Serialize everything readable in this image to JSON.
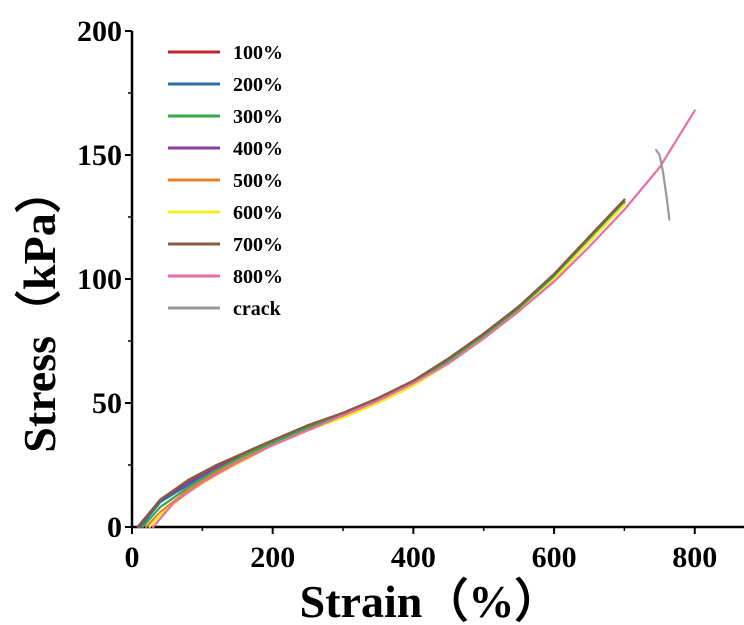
{
  "chart_data": {
    "type": "line",
    "xlabel": "Strain（%）",
    "ylabel": "Stress（kPa）",
    "xlim": [
      0,
      870
    ],
    "ylim": [
      0,
      200
    ],
    "xticks": [
      0,
      200,
      400,
      600,
      800
    ],
    "yticks": [
      0,
      50,
      100,
      150,
      200
    ],
    "grid": false,
    "legend_position": "top-left",
    "series": [
      {
        "name": "100%",
        "color": "#c0272d",
        "x": [
          10,
          40,
          80,
          120,
          160,
          200,
          250,
          300,
          350,
          400,
          450,
          500,
          550,
          600,
          650,
          700
        ],
        "y": [
          0,
          10,
          18,
          24,
          29,
          34,
          40,
          45,
          51,
          58,
          67,
          77,
          88,
          101,
          116,
          131
        ]
      },
      {
        "name": "200%",
        "color": "#2e6fa8",
        "x": [
          12,
          40,
          80,
          120,
          160,
          200,
          250,
          300,
          350,
          400,
          450,
          500,
          550,
          600,
          650,
          700
        ],
        "y": [
          0,
          10,
          17,
          24,
          29,
          34,
          40,
          45,
          51,
          58,
          67,
          77,
          88,
          101,
          116,
          131
        ]
      },
      {
        "name": "300%",
        "color": "#3aa84a",
        "x": [
          15,
          40,
          80,
          120,
          160,
          200,
          250,
          300,
          350,
          400,
          450,
          500,
          550,
          600,
          650,
          700
        ],
        "y": [
          0,
          8,
          16,
          23,
          29,
          34,
          40,
          45,
          51,
          58,
          67,
          77,
          88,
          101,
          116,
          131
        ]
      },
      {
        "name": "400%",
        "color": "#8b3d9c",
        "x": [
          8,
          40,
          80,
          120,
          160,
          200,
          250,
          300,
          350,
          400,
          450,
          500,
          550,
          600,
          650,
          700
        ],
        "y": [
          0,
          11,
          18,
          24,
          30,
          35,
          41,
          46,
          52,
          59,
          68,
          78,
          89,
          102,
          117,
          132
        ]
      },
      {
        "name": "500%",
        "color": "#e8802a",
        "x": [
          20,
          40,
          80,
          120,
          160,
          200,
          250,
          300,
          350,
          400,
          450,
          500,
          550,
          600,
          650,
          700
        ],
        "y": [
          0,
          6,
          15,
          22,
          28,
          33,
          39,
          45,
          50,
          57,
          66,
          76,
          87,
          100,
          115,
          130
        ]
      },
      {
        "name": "600%",
        "color": "#f2ee2a",
        "x": [
          25,
          40,
          80,
          120,
          160,
          200,
          250,
          300,
          350,
          400,
          450,
          500,
          550,
          600,
          650,
          700
        ],
        "y": [
          0,
          5,
          14,
          21,
          27,
          33,
          39,
          44,
          50,
          57,
          66,
          76,
          87,
          100,
          115,
          130
        ]
      },
      {
        "name": "700%",
        "color": "#8a5a3c",
        "x": [
          10,
          40,
          80,
          120,
          160,
          200,
          250,
          300,
          350,
          400,
          450,
          500,
          550,
          600,
          650,
          700
        ],
        "y": [
          0,
          11,
          19,
          25,
          30,
          35,
          41,
          46,
          52,
          59,
          68,
          78,
          89,
          102,
          117,
          132
        ]
      },
      {
        "name": "800%",
        "color": "#e66fa6",
        "x": [
          30,
          60,
          100,
          150,
          200,
          250,
          300,
          350,
          400,
          450,
          500,
          550,
          600,
          650,
          700,
          750,
          800
        ],
        "y": [
          0,
          10,
          18,
          26,
          33,
          39,
          45,
          51,
          58,
          66,
          76,
          87,
          99,
          113,
          128,
          145,
          168
        ]
      },
      {
        "name": "crack",
        "color": "#9a9a9a",
        "x": [
          745,
          750,
          755,
          760,
          764
        ],
        "y": [
          152,
          150,
          143,
          133,
          124
        ]
      }
    ]
  }
}
